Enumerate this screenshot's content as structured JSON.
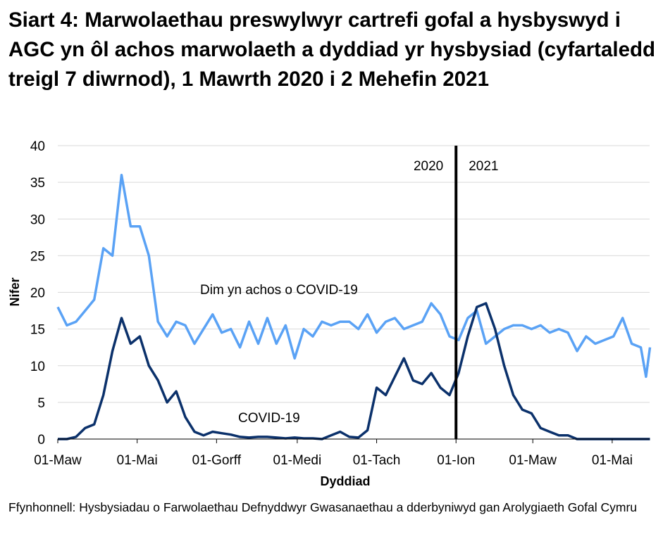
{
  "title": "Siart 4: Marwolaethau preswylwyr cartrefi gofal a hysbyswyd i AGC yn ôl achos marwolaeth a dyddiad yr hysbysiad (cyfartaledd treigl 7 diwrnod), 1 Mawrth 2020 i 2 Mehefin 2021",
  "source": "Ffynhonnell: Hysbysiadau o Farwolaethau Defnyddwyr Gwasanaethau a dderbyniwyd gan Arolygiaeth Gofal Cymru",
  "chart_data": {
    "type": "line",
    "title": "Siart 4: Marwolaethau preswylwyr cartrefi gofal a hysbyswyd i AGC yn ôl achos marwolaeth a dyddiad yr hysbysiad (cyfartaledd treigl 7 diwrnod), 1 Mawrth 2020 i 2 Mehefin 2021",
    "xlabel": "Dyddiad",
    "ylabel": "Nifer",
    "ylim": [
      0,
      40
    ],
    "yticks": [
      0,
      5,
      10,
      15,
      20,
      25,
      30,
      35,
      40
    ],
    "xlim": [
      "2020-03-01",
      "2021-06-02"
    ],
    "xticks": [
      {
        "date": "2020-03-01",
        "label": "01-Maw"
      },
      {
        "date": "2020-05-01",
        "label": "01-Mai"
      },
      {
        "date": "2020-07-01",
        "label": "01-Gorff"
      },
      {
        "date": "2020-09-01",
        "label": "01-Medi"
      },
      {
        "date": "2020-11-01",
        "label": "01-Tach"
      },
      {
        "date": "2021-01-01",
        "label": "01-Ion"
      },
      {
        "date": "2021-03-01",
        "label": "01-Maw"
      },
      {
        "date": "2021-05-01",
        "label": "01-Mai"
      }
    ],
    "grid": "horizontal",
    "year_divider": {
      "date": "2021-01-01",
      "left_label": "2020",
      "right_label": "2021"
    },
    "x": [
      "2020-03-01",
      "2020-03-08",
      "2020-03-15",
      "2020-03-22",
      "2020-03-29",
      "2020-04-05",
      "2020-04-12",
      "2020-04-19",
      "2020-04-26",
      "2020-05-03",
      "2020-05-10",
      "2020-05-17",
      "2020-05-24",
      "2020-05-31",
      "2020-06-07",
      "2020-06-14",
      "2020-06-21",
      "2020-06-28",
      "2020-07-05",
      "2020-07-12",
      "2020-07-19",
      "2020-07-26",
      "2020-08-02",
      "2020-08-09",
      "2020-08-16",
      "2020-08-23",
      "2020-08-30",
      "2020-09-06",
      "2020-09-13",
      "2020-09-20",
      "2020-09-27",
      "2020-10-04",
      "2020-10-11",
      "2020-10-18",
      "2020-10-25",
      "2020-11-01",
      "2020-11-08",
      "2020-11-15",
      "2020-11-22",
      "2020-11-29",
      "2020-12-06",
      "2020-12-13",
      "2020-12-20",
      "2020-12-27",
      "2021-01-03",
      "2021-01-10",
      "2021-01-17",
      "2021-01-24",
      "2021-01-31",
      "2021-02-07",
      "2021-02-14",
      "2021-02-21",
      "2021-02-28",
      "2021-03-07",
      "2021-03-14",
      "2021-03-21",
      "2021-03-28",
      "2021-04-04",
      "2021-04-11",
      "2021-04-18",
      "2021-04-25",
      "2021-05-02",
      "2021-05-09",
      "2021-05-16",
      "2021-05-23",
      "2021-05-27",
      "2021-05-30"
    ],
    "series": [
      {
        "name": "Dim yn achos o COVID-19",
        "color": "#5aa2f5",
        "values": [
          18,
          15.5,
          16,
          17.5,
          19,
          26,
          25,
          36,
          29,
          29,
          25,
          16,
          14,
          16,
          15.5,
          13,
          15,
          17,
          14.5,
          15,
          12.5,
          16,
          13,
          16.5,
          13,
          15.5,
          11,
          15,
          14,
          16,
          15.5,
          16,
          16,
          15,
          17,
          14.5,
          16,
          16.5,
          15,
          15.5,
          16,
          18.5,
          17,
          14,
          13.5,
          16.5,
          17.5,
          13,
          14,
          15,
          15.5,
          15.5,
          15,
          15.5,
          14.5,
          15,
          14.5,
          12,
          14,
          13,
          13.5,
          14,
          16.5,
          13,
          12.5,
          8.5,
          12.5
        ]
      },
      {
        "name": "COVID-19",
        "color": "#0b316b",
        "values": [
          0,
          0,
          0.3,
          1.5,
          2,
          6,
          12,
          16.5,
          13,
          14,
          10,
          8,
          5,
          6.5,
          3,
          1,
          0.5,
          1,
          0.8,
          0.6,
          0.3,
          0.2,
          0.3,
          0.3,
          0.2,
          0.1,
          0.2,
          0.1,
          0.1,
          0,
          0.5,
          1,
          0.3,
          0.2,
          1.2,
          7,
          6,
          8.5,
          11,
          8,
          7.5,
          9,
          7,
          6,
          9,
          14,
          18,
          18.5,
          15,
          10,
          6,
          4,
          3.5,
          1.5,
          1,
          0.5,
          0.5,
          0,
          0,
          0,
          0,
          0,
          0,
          0,
          0,
          0,
          0
        ]
      }
    ]
  }
}
